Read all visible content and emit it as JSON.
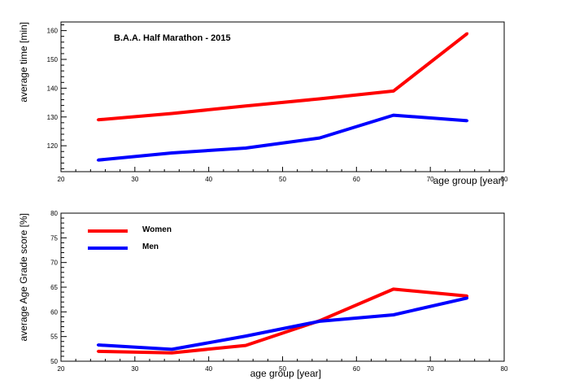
{
  "chart_data": [
    {
      "type": "line",
      "title": "B.A.A. Half Marathon - 2015",
      "xlabel": "age group [year]",
      "ylabel": "average time [min]",
      "xlim": [
        20,
        80
      ],
      "ylim": [
        111,
        163
      ],
      "xticks": [
        20,
        30,
        40,
        50,
        60,
        70,
        80
      ],
      "yticks": [
        120,
        130,
        140,
        150,
        160
      ],
      "x": [
        25,
        35,
        45,
        55,
        65,
        75
      ],
      "series": [
        {
          "values": [
            129,
            131.2,
            133.8,
            136.3,
            139,
            159
          ],
          "color": "#ff0000"
        },
        {
          "values": [
            115,
            117.5,
            119.2,
            122.7,
            130.6,
            128.7
          ],
          "color": "#0000ff"
        }
      ]
    },
    {
      "type": "line",
      "title": "",
      "xlabel": "age group [year]",
      "ylabel": "average Age Grade score [%]",
      "xlim": [
        20,
        80
      ],
      "ylim": [
        50,
        80
      ],
      "xticks": [
        20,
        30,
        40,
        50,
        60,
        70,
        80
      ],
      "yticks": [
        50,
        55,
        60,
        65,
        70,
        75,
        80
      ],
      "x": [
        25,
        35,
        45,
        55,
        65,
        75
      ],
      "legend_position": "top-left",
      "series": [
        {
          "name": "Women",
          "values": [
            52,
            51.7,
            53.2,
            58.2,
            64.6,
            63.2
          ],
          "color": "#ff0000"
        },
        {
          "name": "Men",
          "values": [
            53.3,
            52.4,
            55.1,
            58.1,
            59.4,
            62.8
          ],
          "color": "#0000ff"
        }
      ]
    }
  ]
}
